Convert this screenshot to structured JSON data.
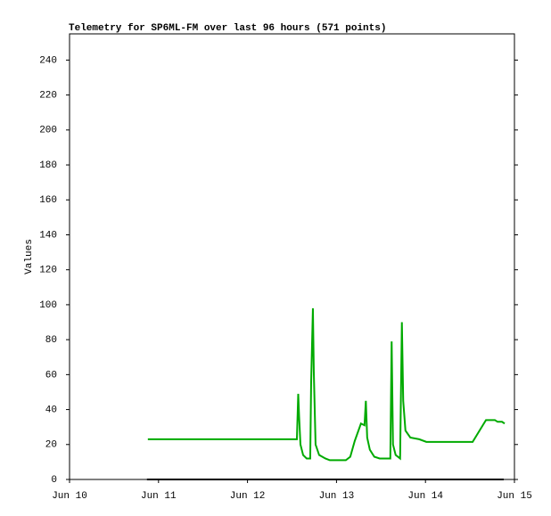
{
  "chart_data": {
    "type": "line",
    "title": "Telemetry for SP6ML-FM over last 96 hours (571 points)",
    "ylabel": "Values",
    "xlim": [
      10,
      15
    ],
    "xticks": [
      {
        "value": 10,
        "label": "Jun 10"
      },
      {
        "value": 11,
        "label": "Jun 11"
      },
      {
        "value": 12,
        "label": "Jun 12"
      },
      {
        "value": 13,
        "label": "Jun 13"
      },
      {
        "value": 14,
        "label": "Jun 14"
      },
      {
        "value": 15,
        "label": "Jun 15"
      }
    ],
    "ylim": [
      0,
      255
    ],
    "yticks": [
      0,
      20,
      40,
      60,
      80,
      100,
      120,
      140,
      160,
      180,
      200,
      220,
      240
    ],
    "series": [
      {
        "color": "#00aa00",
        "x": [
          10.88,
          12.555,
          12.57,
          12.58,
          12.595,
          12.625,
          12.665,
          12.705,
          12.715,
          12.735,
          12.745,
          12.765,
          12.805,
          12.875,
          12.925,
          13.105,
          13.155,
          13.205,
          13.275,
          13.315,
          13.33,
          13.345,
          13.375,
          13.425,
          13.485,
          13.605,
          13.62,
          13.635,
          13.665,
          13.715,
          13.735,
          13.75,
          13.775,
          13.83,
          13.93,
          14.01,
          14.53,
          14.68,
          14.78,
          14.81,
          14.86,
          14.89
        ],
        "values": [
          23,
          23,
          49,
          36,
          20,
          14,
          12,
          12,
          55,
          98,
          62,
          20,
          14,
          12,
          11,
          11,
          13,
          22,
          32,
          31,
          45,
          24,
          17,
          13,
          12,
          12,
          79,
          20,
          14,
          12,
          90,
          45,
          28,
          24,
          23,
          21.5,
          21.5,
          34,
          34,
          33,
          33,
          32
        ]
      },
      {
        "color": "#000000",
        "x": [
          10.87,
          14.88
        ],
        "values": [
          0,
          0
        ]
      }
    ]
  }
}
